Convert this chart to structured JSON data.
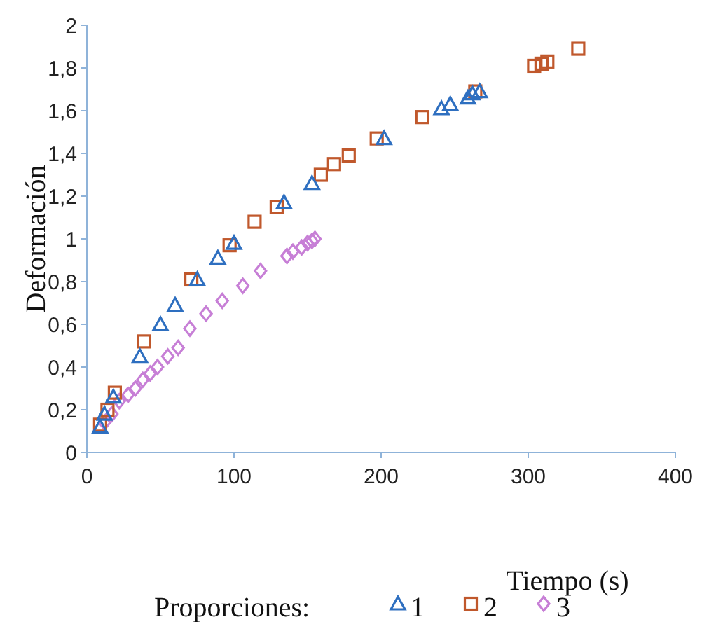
{
  "chart_data": {
    "type": "scatter",
    "xlabel": "Tiempo (s)",
    "ylabel": "Deformación",
    "legend_title": "Proporciones:",
    "legend": "bottom",
    "grid": false,
    "xlim": [
      0,
      400
    ],
    "xticks": [
      0,
      100,
      200,
      300,
      400
    ],
    "ylim": [
      0,
      2
    ],
    "yticks": [
      0,
      {
        "value": 0.2,
        "label": "0,2"
      },
      {
        "value": 0.4,
        "label": "0,4"
      },
      {
        "value": 0.6,
        "label": "0,6"
      },
      {
        "value": 0.8,
        "label": "0,8"
      },
      1,
      {
        "value": 1.2,
        "label": "1,2"
      },
      {
        "value": 1.4,
        "label": "1,4"
      },
      {
        "value": 1.6,
        "label": "1,6"
      },
      {
        "value": 1.8,
        "label": "1,8"
      },
      2
    ],
    "series": [
      {
        "name": "1",
        "color": "#2e6fc0",
        "marker": "triangle",
        "x": [
          9,
          12,
          18,
          36,
          50,
          60,
          75,
          89,
          100,
          134,
          153,
          202,
          241,
          247,
          259,
          262,
          267
        ],
        "values": [
          0.12,
          0.18,
          0.26,
          0.45,
          0.6,
          0.69,
          0.81,
          0.91,
          0.98,
          1.17,
          1.26,
          1.47,
          1.61,
          1.63,
          1.66,
          1.68,
          1.69
        ]
      },
      {
        "name": "2",
        "color": "#c0582c",
        "marker": "square",
        "x": [
          9,
          14,
          19,
          39,
          71,
          97,
          114,
          129,
          159,
          168,
          178,
          197,
          228,
          264,
          304,
          309,
          313,
          334
        ],
        "values": [
          0.13,
          0.2,
          0.28,
          0.52,
          0.81,
          0.97,
          1.08,
          1.15,
          1.3,
          1.35,
          1.39,
          1.47,
          1.57,
          1.69,
          1.81,
          1.82,
          1.83,
          1.89
        ]
      },
      {
        "name": "3",
        "color": "#c77fd6",
        "marker": "diamond",
        "x": [
          12,
          17,
          22,
          28,
          33,
          38,
          43,
          48,
          55,
          62,
          70,
          81,
          92,
          106,
          118,
          136,
          140,
          146,
          150,
          153,
          155
        ],
        "values": [
          0.14,
          0.18,
          0.24,
          0.27,
          0.3,
          0.34,
          0.37,
          0.4,
          0.45,
          0.49,
          0.58,
          0.65,
          0.71,
          0.78,
          0.85,
          0.92,
          0.94,
          0.96,
          0.98,
          0.99,
          1.0
        ]
      }
    ]
  }
}
